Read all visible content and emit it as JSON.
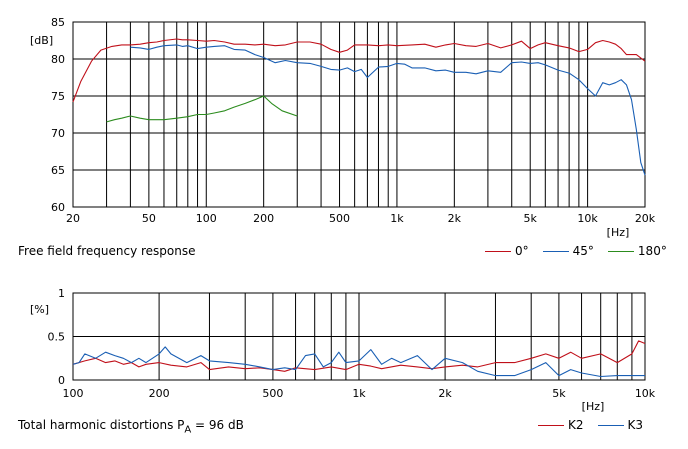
{
  "chart_data": [
    {
      "type": "line",
      "title": "Free field frequency response",
      "xlabel": "[Hz]",
      "ylabel": "[dB]",
      "x_scale": "log",
      "xlim": [
        20,
        20000
      ],
      "ylim": [
        60,
        85
      ],
      "grid": true,
      "legend_position": "bottom-right",
      "x_tick_labels": [
        {
          "value": 20,
          "label": "20"
        },
        {
          "value": 50,
          "label": "50"
        },
        {
          "value": 100,
          "label": "100"
        },
        {
          "value": 200,
          "label": "200"
        },
        {
          "value": 500,
          "label": "500"
        },
        {
          "value": 1000,
          "label": "1k"
        },
        {
          "value": 2000,
          "label": "2k"
        },
        {
          "value": 5000,
          "label": "5k"
        },
        {
          "value": 10000,
          "label": "10k"
        },
        {
          "value": 20000,
          "label": "20k"
        }
      ],
      "y_tick_labels": [
        {
          "value": 85,
          "label": "85"
        },
        {
          "value": 80,
          "label": "80"
        },
        {
          "value": 75,
          "label": "75"
        },
        {
          "value": 70,
          "label": "70"
        },
        {
          "value": 65,
          "label": "65"
        },
        {
          "value": 60,
          "label": "60"
        }
      ],
      "series": [
        {
          "name": "0°",
          "color": "#c0101a",
          "x": [
            20,
            22,
            25,
            28,
            32,
            36,
            40,
            45,
            50,
            55,
            60,
            70,
            75,
            80,
            90,
            100,
            110,
            125,
            140,
            160,
            180,
            200,
            230,
            260,
            300,
            350,
            400,
            450,
            500,
            550,
            600,
            700,
            800,
            900,
            1000,
            1200,
            1400,
            1600,
            1800,
            2000,
            2300,
            2600,
            3000,
            3500,
            4000,
            4500,
            5000,
            5500,
            6000,
            7000,
            8000,
            9000,
            10000,
            11000,
            12000,
            13000,
            14000,
            15000,
            16000,
            18000,
            20000
          ],
          "y": [
            74.2,
            77,
            79.7,
            81.2,
            81.7,
            81.9,
            81.9,
            82.0,
            82.2,
            82.3,
            82.5,
            82.7,
            82.6,
            82.6,
            82.5,
            82.4,
            82.5,
            82.3,
            82.0,
            82.0,
            81.9,
            82.0,
            81.8,
            81.9,
            82.3,
            82.3,
            82.0,
            81.3,
            80.9,
            81.2,
            81.9,
            81.9,
            81.8,
            81.9,
            81.8,
            81.9,
            82.0,
            81.6,
            81.9,
            82.1,
            81.8,
            81.7,
            82.1,
            81.5,
            81.9,
            82.4,
            81.4,
            81.9,
            82.2,
            81.8,
            81.5,
            81.0,
            81.3,
            82.2,
            82.5,
            82.3,
            82.0,
            81.4,
            80.6,
            80.6,
            79.7
          ]
        },
        {
          "name": "45°",
          "color": "#1a5fb4",
          "x": [
            40,
            45,
            50,
            55,
            60,
            70,
            75,
            80,
            90,
            100,
            110,
            125,
            140,
            160,
            180,
            200,
            230,
            260,
            300,
            350,
            400,
            450,
            500,
            550,
            600,
            650,
            700,
            800,
            900,
            1000,
            1100,
            1200,
            1400,
            1600,
            1800,
            2000,
            2300,
            2600,
            3000,
            3500,
            4000,
            4500,
            5000,
            5500,
            6000,
            7000,
            8000,
            9000,
            10000,
            11000,
            12000,
            13000,
            14000,
            15000,
            16000,
            17000,
            18000,
            19000,
            20000
          ],
          "y": [
            81.6,
            81.5,
            81.3,
            81.6,
            81.8,
            81.9,
            81.7,
            81.8,
            81.4,
            81.6,
            81.7,
            81.8,
            81.3,
            81.2,
            80.6,
            80.2,
            79.5,
            79.8,
            79.5,
            79.4,
            79.0,
            78.6,
            78.5,
            78.8,
            78.3,
            78.6,
            77.5,
            78.9,
            79.0,
            79.4,
            79.3,
            78.8,
            78.8,
            78.4,
            78.5,
            78.2,
            78.2,
            78.0,
            78.4,
            78.2,
            79.5,
            79.6,
            79.4,
            79.5,
            79.2,
            78.5,
            78.1,
            77.2,
            76.0,
            75.0,
            76.8,
            76.5,
            76.8,
            77.2,
            76.5,
            74.5,
            70.5,
            66.0,
            64.3
          ]
        },
        {
          "name": "180°",
          "color": "#2c8c1e",
          "x": [
            30,
            33,
            36,
            40,
            45,
            50,
            55,
            60,
            70,
            80,
            90,
            100,
            110,
            125,
            140,
            160,
            180,
            200,
            220,
            250,
            300
          ],
          "y": [
            71.5,
            71.8,
            72.0,
            72.3,
            72.0,
            71.8,
            71.8,
            71.8,
            72.0,
            72.2,
            72.5,
            72.5,
            72.7,
            73.0,
            73.5,
            74.0,
            74.5,
            75.0,
            74.0,
            73.0,
            72.3
          ]
        }
      ]
    },
    {
      "type": "line",
      "title": "Total harmonic distortions P",
      "title_sub": "A",
      "title_suffix": " = 96 dB",
      "xlabel": "[Hz]",
      "ylabel": "[%]",
      "x_scale": "log",
      "xlim": [
        100,
        10000
      ],
      "ylim": [
        0,
        1
      ],
      "grid": true,
      "legend_position": "bottom-right",
      "x_tick_labels": [
        {
          "value": 100,
          "label": "100"
        },
        {
          "value": 200,
          "label": "200"
        },
        {
          "value": 500,
          "label": "500"
        },
        {
          "value": 1000,
          "label": "1k"
        },
        {
          "value": 2000,
          "label": "2k"
        },
        {
          "value": 5000,
          "label": "5k"
        },
        {
          "value": 10000,
          "label": "10k"
        }
      ],
      "y_tick_labels": [
        {
          "value": 1,
          "label": "1"
        },
        {
          "value": 0.5,
          "label": "0.5"
        },
        {
          "value": 0,
          "label": "0"
        }
      ],
      "series": [
        {
          "name": "K2",
          "color": "#c0101a",
          "x": [
            100,
            110,
            120,
            130,
            140,
            150,
            160,
            170,
            180,
            200,
            220,
            250,
            280,
            300,
            350,
            400,
            450,
            500,
            550,
            600,
            700,
            800,
            900,
            1000,
            1100,
            1200,
            1400,
            1600,
            1800,
            2000,
            2300,
            2600,
            3000,
            3500,
            4000,
            4500,
            5000,
            5500,
            6000,
            7000,
            8000,
            9000,
            9500,
            10000
          ],
          "y": [
            0.18,
            0.22,
            0.25,
            0.2,
            0.22,
            0.18,
            0.2,
            0.15,
            0.18,
            0.2,
            0.17,
            0.15,
            0.2,
            0.12,
            0.15,
            0.13,
            0.14,
            0.12,
            0.1,
            0.14,
            0.12,
            0.15,
            0.12,
            0.18,
            0.16,
            0.13,
            0.17,
            0.15,
            0.13,
            0.15,
            0.17,
            0.15,
            0.2,
            0.2,
            0.25,
            0.3,
            0.25,
            0.32,
            0.25,
            0.3,
            0.2,
            0.3,
            0.45,
            0.42
          ]
        },
        {
          "name": "K3",
          "color": "#1a5fb4",
          "x": [
            100,
            105,
            110,
            120,
            130,
            140,
            150,
            160,
            170,
            180,
            200,
            210,
            220,
            250,
            280,
            300,
            350,
            400,
            450,
            500,
            550,
            600,
            650,
            700,
            750,
            800,
            850,
            900,
            1000,
            1100,
            1200,
            1300,
            1400,
            1600,
            1800,
            2000,
            2300,
            2600,
            3000,
            3500,
            4000,
            4500,
            5000,
            5500,
            6000,
            7000,
            8000,
            9000,
            10000
          ],
          "y": [
            0.18,
            0.2,
            0.3,
            0.25,
            0.32,
            0.28,
            0.25,
            0.2,
            0.25,
            0.2,
            0.3,
            0.38,
            0.3,
            0.2,
            0.28,
            0.22,
            0.2,
            0.18,
            0.15,
            0.12,
            0.14,
            0.12,
            0.28,
            0.3,
            0.15,
            0.2,
            0.32,
            0.2,
            0.22,
            0.35,
            0.18,
            0.25,
            0.2,
            0.28,
            0.12,
            0.25,
            0.2,
            0.1,
            0.05,
            0.05,
            0.12,
            0.2,
            0.05,
            0.12,
            0.08,
            0.04,
            0.05,
            0.05,
            0.05
          ]
        }
      ]
    }
  ]
}
